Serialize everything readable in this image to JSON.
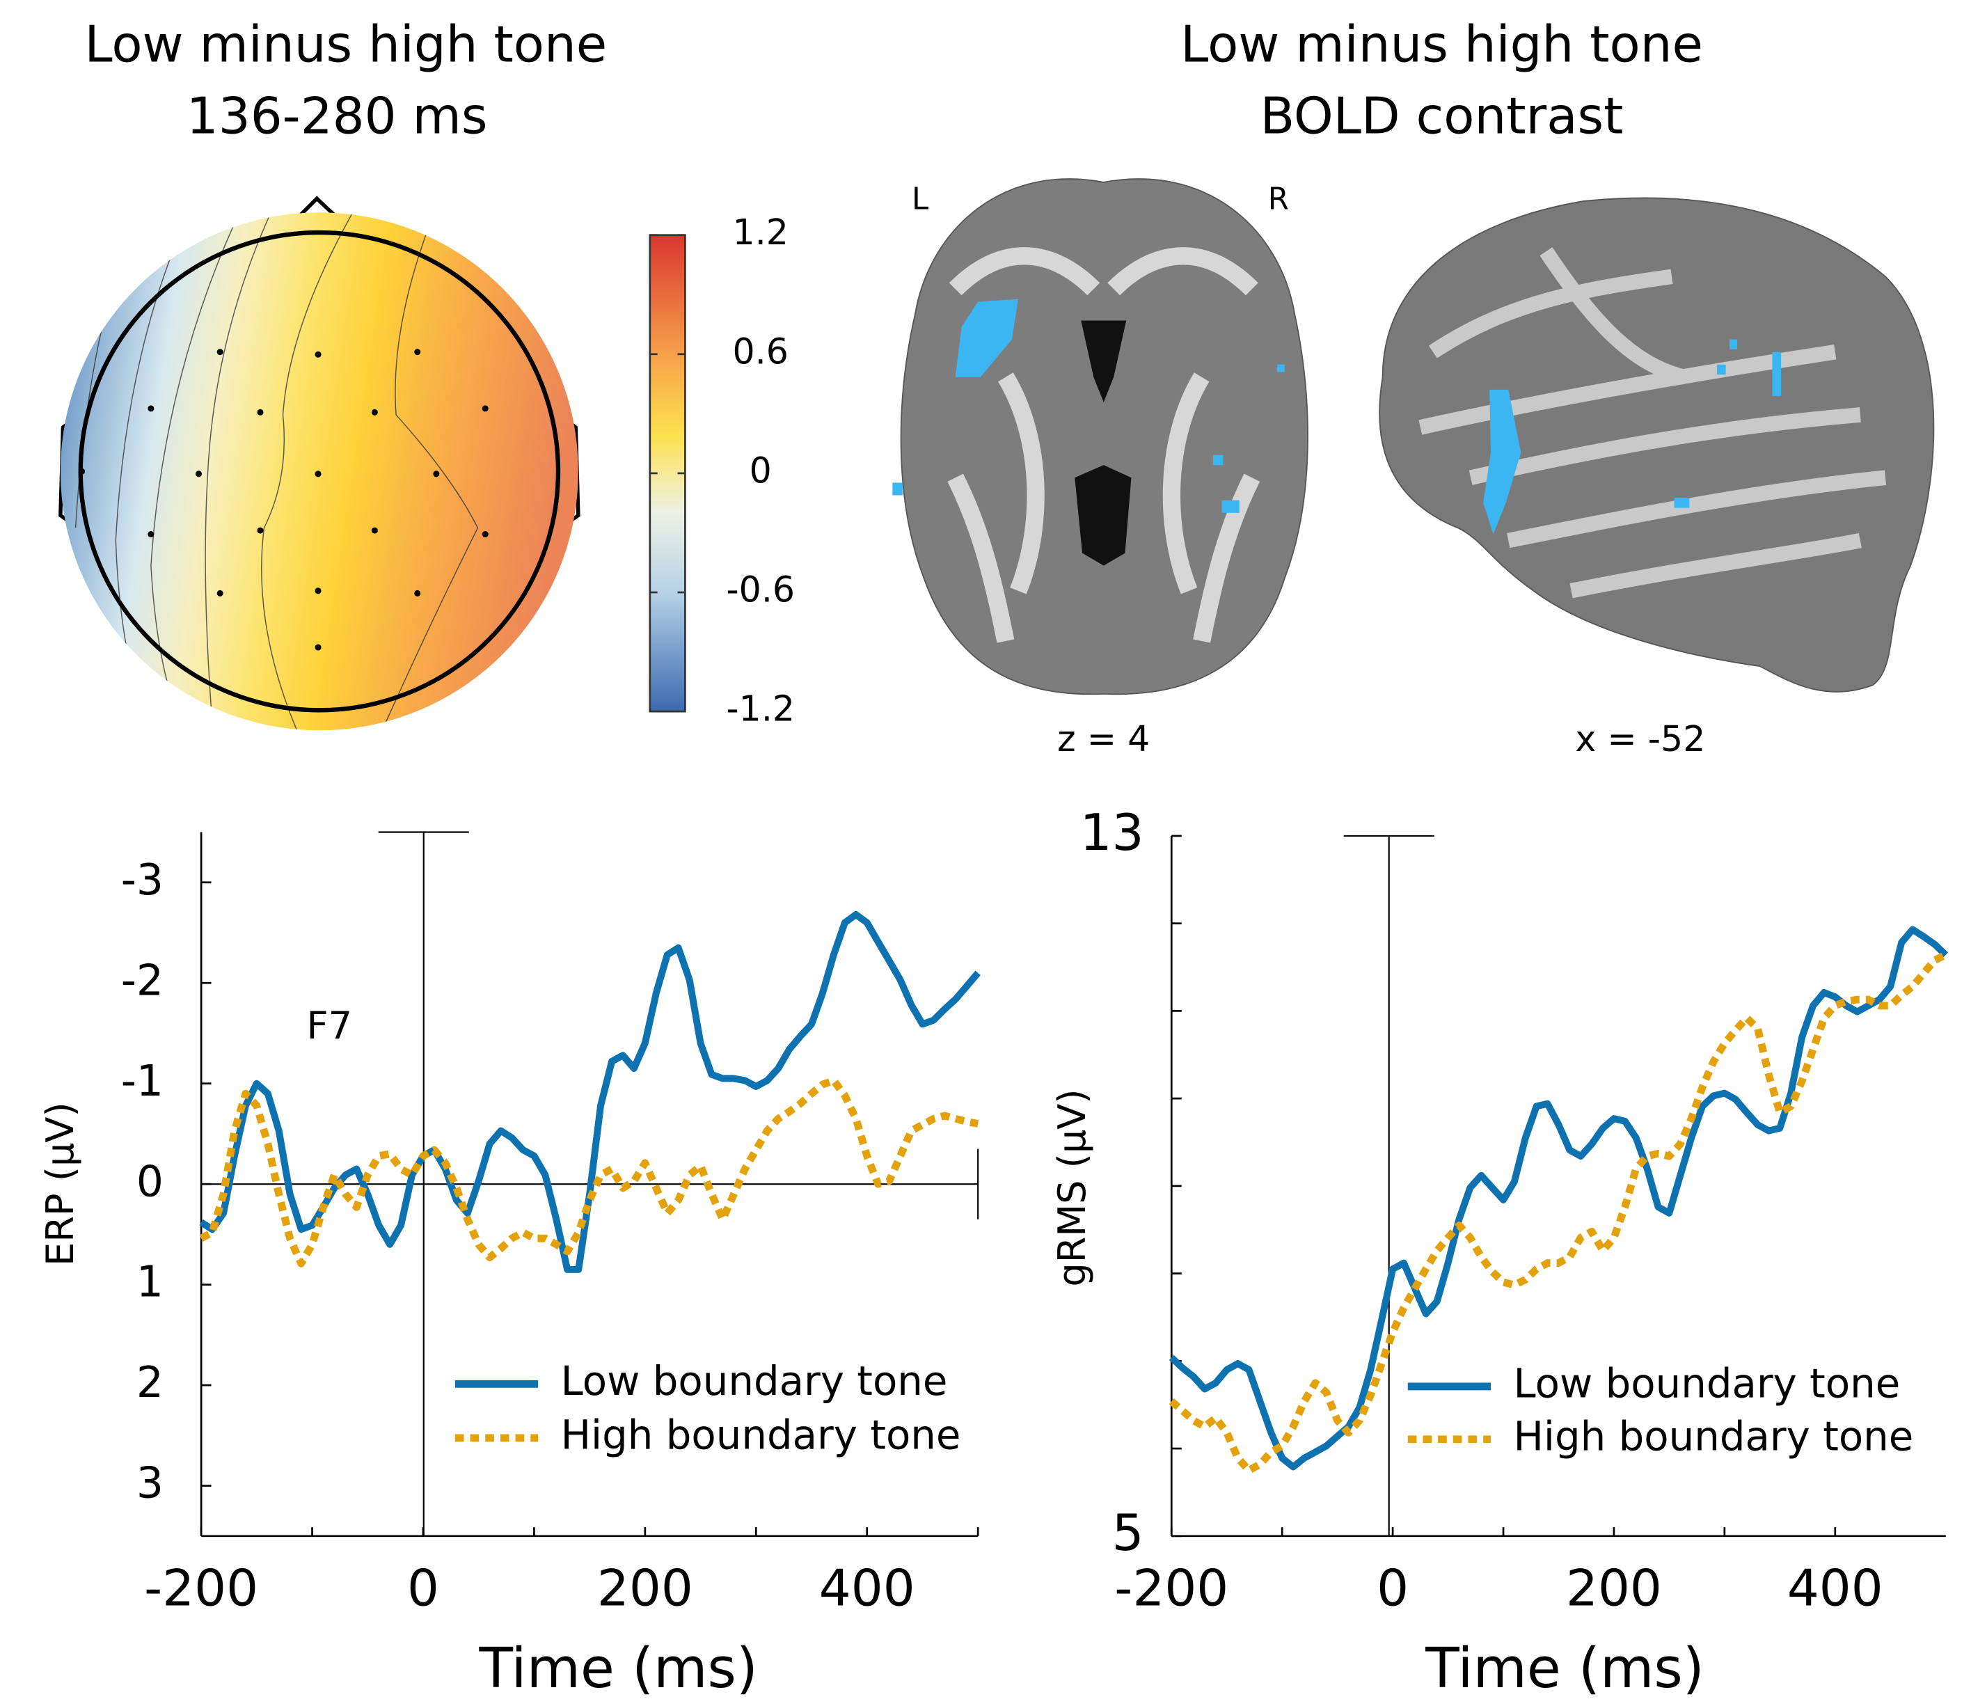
{
  "topomap": {
    "title": [
      "Low minus high tone",
      "136-280 ms"
    ],
    "colorbar": {
      "clim": [
        -1.2,
        1.2
      ],
      "ticks": [
        1.2,
        0.6,
        0,
        -0.6,
        -1.2
      ]
    }
  },
  "bold": {
    "title": [
      "Low minus high tone",
      "BOLD contrast"
    ],
    "left_label": "L",
    "right_label": "R",
    "axial_caption": "z = 4",
    "sagittal_caption": "x = -52"
  },
  "chart_data": [
    {
      "type": "line",
      "ylabel": "ERP (µV)",
      "xlabel": "Time (ms)",
      "annotation": "F7",
      "legend": "lower right",
      "xlim": [
        -200,
        500
      ],
      "ylim": [
        3.5,
        -3.5
      ],
      "xticks": [
        -200,
        0,
        200,
        400
      ],
      "minor_xticks": [
        -100,
        100,
        300,
        500
      ],
      "yticks": [
        -3,
        -2,
        -1,
        0,
        1,
        2,
        3
      ],
      "x": [
        -200,
        -190,
        -180,
        -170,
        -160,
        -150,
        -140,
        -130,
        -120,
        -110,
        -100,
        -90,
        -80,
        -70,
        -60,
        -50,
        -40,
        -30,
        -20,
        -10,
        0,
        10,
        20,
        30,
        40,
        50,
        60,
        70,
        80,
        90,
        100,
        110,
        120,
        130,
        140,
        150,
        160,
        170,
        180,
        190,
        200,
        210,
        220,
        230,
        240,
        250,
        260,
        270,
        280,
        290,
        300,
        310,
        320,
        330,
        340,
        350,
        360,
        370,
        380,
        390,
        400,
        410,
        420,
        430,
        440,
        450,
        460,
        470,
        480,
        490,
        500
      ],
      "series": [
        {
          "name": "Low boundary tone",
          "color": "#0f72b0",
          "values": [
            0.38,
            0.45,
            0.29,
            -0.28,
            -0.78,
            -1.0,
            -0.9,
            -0.53,
            0.1,
            0.45,
            0.41,
            0.23,
            0.04,
            -0.09,
            -0.15,
            0.1,
            0.41,
            0.6,
            0.41,
            -0.09,
            -0.28,
            -0.34,
            -0.15,
            0.16,
            0.29,
            -0.03,
            -0.4,
            -0.53,
            -0.46,
            -0.34,
            -0.28,
            -0.09,
            0.35,
            0.85,
            0.85,
            0.1,
            -0.78,
            -1.22,
            -1.28,
            -1.15,
            -1.4,
            -1.9,
            -2.28,
            -2.35,
            -2.03,
            -1.4,
            -1.09,
            -1.05,
            -1.05,
            -1.03,
            -0.97,
            -1.03,
            -1.15,
            -1.34,
            -1.47,
            -1.59,
            -1.9,
            -2.28,
            -2.6,
            -2.68,
            -2.6,
            -2.41,
            -2.22,
            -2.03,
            -1.78,
            -1.59,
            -1.63,
            -1.74,
            -1.84,
            -1.97,
            -2.1
          ]
        },
        {
          "name": "High boundary tone",
          "color": "#e3a10c",
          "values": [
            0.54,
            0.48,
            0.1,
            -0.53,
            -0.9,
            -0.78,
            -0.4,
            0.1,
            0.54,
            0.79,
            0.6,
            0.23,
            -0.09,
            0.1,
            0.23,
            -0.09,
            -0.28,
            -0.3,
            -0.15,
            -0.09,
            -0.28,
            -0.34,
            -0.21,
            0.04,
            0.35,
            0.6,
            0.73,
            0.64,
            0.54,
            0.48,
            0.54,
            0.54,
            0.6,
            0.67,
            0.48,
            0.16,
            -0.09,
            -0.15,
            0.04,
            -0.03,
            -0.21,
            0.04,
            0.29,
            0.16,
            -0.09,
            -0.18,
            0.1,
            0.35,
            0.1,
            -0.15,
            -0.34,
            -0.53,
            -0.65,
            -0.72,
            -0.8,
            -0.9,
            -0.99,
            -1.03,
            -0.88,
            -0.65,
            -0.28,
            0,
            -0.03,
            -0.28,
            -0.53,
            -0.59,
            -0.65,
            -0.68,
            -0.65,
            -0.62,
            -0.6
          ]
        }
      ]
    },
    {
      "type": "line",
      "ylabel": "gRMS (µV)",
      "xlabel": "Time (ms)",
      "legend": "lower right",
      "xlim": [
        -200,
        500
      ],
      "ylim": [
        5,
        13
      ],
      "xticks": [
        -200,
        0,
        200,
        400
      ],
      "minor_xticks": [
        -100,
        100,
        300
      ],
      "yticks": [
        5,
        13
      ],
      "minor_yticks": [
        6,
        7,
        8,
        9,
        10,
        11,
        12
      ],
      "x": [
        -200,
        -190,
        -180,
        -170,
        -160,
        -150,
        -140,
        -130,
        -120,
        -110,
        -100,
        -90,
        -80,
        -70,
        -60,
        -50,
        -40,
        -30,
        -20,
        -10,
        0,
        10,
        20,
        30,
        40,
        50,
        60,
        70,
        80,
        90,
        100,
        110,
        120,
        130,
        140,
        150,
        160,
        170,
        180,
        190,
        200,
        210,
        220,
        230,
        240,
        250,
        260,
        270,
        280,
        290,
        300,
        310,
        320,
        330,
        340,
        350,
        360,
        370,
        380,
        390,
        400,
        410,
        420,
        430,
        440,
        450,
        460,
        470,
        480,
        490,
        500
      ],
      "series": [
        {
          "name": "Low boundary tone",
          "color": "#0f72b0",
          "values": [
            7.04,
            6.92,
            6.82,
            6.68,
            6.75,
            6.9,
            6.97,
            6.9,
            6.54,
            6.18,
            5.89,
            5.79,
            5.89,
            5.96,
            6.03,
            6.14,
            6.25,
            6.47,
            6.9,
            7.47,
            8.05,
            8.12,
            7.83,
            7.54,
            7.68,
            8.12,
            8.62,
            8.98,
            9.12,
            8.98,
            8.84,
            9.05,
            9.55,
            9.91,
            9.94,
            9.7,
            9.41,
            9.34,
            9.48,
            9.66,
            9.77,
            9.74,
            9.55,
            9.2,
            8.76,
            8.69,
            9.12,
            9.55,
            9.91,
            10.03,
            10.06,
            9.99,
            9.84,
            9.7,
            9.63,
            9.66,
            10.06,
            10.7,
            11.06,
            11.21,
            11.16,
            11.06,
            10.99,
            11.06,
            11.13,
            11.28,
            11.78,
            11.93,
            11.85,
            11.76,
            11.64
          ]
        },
        {
          "name": "High boundary tone",
          "color": "#e3a10c",
          "values": [
            6.54,
            6.43,
            6.32,
            6.25,
            6.35,
            6.18,
            5.89,
            5.75,
            5.82,
            5.96,
            6.03,
            6.25,
            6.54,
            6.75,
            6.64,
            6.32,
            6.18,
            6.32,
            6.61,
            6.97,
            7.33,
            7.61,
            7.83,
            8.05,
            8.26,
            8.41,
            8.55,
            8.41,
            8.19,
            8.02,
            7.9,
            7.87,
            7.93,
            8.05,
            8.12,
            8.12,
            8.19,
            8.41,
            8.48,
            8.26,
            8.41,
            8.76,
            9.2,
            9.34,
            9.37,
            9.34,
            9.48,
            9.77,
            10.13,
            10.42,
            10.63,
            10.78,
            10.92,
            10.8,
            10.27,
            9.84,
            9.91,
            10.2,
            10.56,
            10.92,
            11.06,
            11.11,
            11.13,
            11.13,
            11.06,
            11.06,
            11.18,
            11.28,
            11.43,
            11.58,
            11.64
          ]
        }
      ]
    }
  ]
}
